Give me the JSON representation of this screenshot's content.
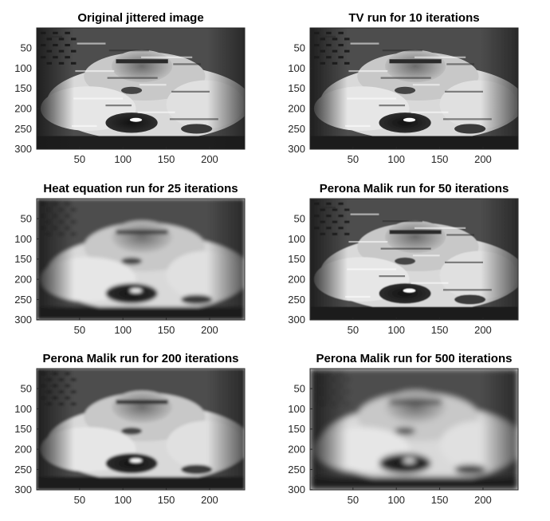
{
  "chart_data": [
    {
      "type": "heatmap",
      "title": "Original jittered image",
      "colormap": "gray",
      "xlim": [
        0.5,
        240.5
      ],
      "ylim": [
        0.5,
        300.5
      ],
      "y_direction": "reversed",
      "xticks": [
        50,
        100,
        150,
        200
      ],
      "yticks": [
        50,
        100,
        150,
        200,
        250,
        300
      ],
      "blur_level": 0,
      "grid": false,
      "legend": "none"
    },
    {
      "type": "heatmap",
      "title": "TV run for 10 iterations",
      "colormap": "gray",
      "xlim": [
        0.5,
        240.5
      ],
      "ylim": [
        0.5,
        300.5
      ],
      "y_direction": "reversed",
      "xticks": [
        50,
        100,
        150,
        200
      ],
      "yticks": [
        50,
        100,
        150,
        200,
        250,
        300
      ],
      "blur_level": 0.25,
      "grid": false,
      "legend": "none"
    },
    {
      "type": "heatmap",
      "title": "Heat equation run for 25 iterations",
      "colormap": "gray",
      "xlim": [
        0.5,
        240.5
      ],
      "ylim": [
        0.5,
        300.5
      ],
      "y_direction": "reversed",
      "xticks": [
        50,
        100,
        150,
        200
      ],
      "yticks": [
        50,
        100,
        150,
        200,
        250,
        300
      ],
      "blur_level": 2.4,
      "grid": false,
      "legend": "none"
    },
    {
      "type": "heatmap",
      "title": "Perona Malik run for 50 iterations",
      "colormap": "gray",
      "xlim": [
        0.5,
        240.5
      ],
      "ylim": [
        0.5,
        300.5
      ],
      "y_direction": "reversed",
      "xticks": [
        50,
        100,
        150,
        200
      ],
      "yticks": [
        50,
        100,
        150,
        200,
        250,
        300
      ],
      "blur_level": 0.6,
      "grid": false,
      "legend": "none"
    },
    {
      "type": "heatmap",
      "title": "Perona Malik run for 200 iterations",
      "colormap": "gray",
      "xlim": [
        0.5,
        240.5
      ],
      "ylim": [
        0.5,
        300.5
      ],
      "y_direction": "reversed",
      "xticks": [
        50,
        100,
        150,
        200
      ],
      "yticks": [
        50,
        100,
        150,
        200,
        250,
        300
      ],
      "blur_level": 1.6,
      "grid": false,
      "legend": "none"
    },
    {
      "type": "heatmap",
      "title": "Perona Malik run for 500 iterations",
      "colormap": "gray",
      "xlim": [
        0.5,
        240.5
      ],
      "ylim": [
        0.5,
        300.5
      ],
      "y_direction": "reversed",
      "xticks": [
        50,
        100,
        150,
        200
      ],
      "yticks": [
        50,
        100,
        150,
        200,
        250,
        300
      ],
      "blur_level": 3.6,
      "grid": false,
      "legend": "none"
    }
  ]
}
